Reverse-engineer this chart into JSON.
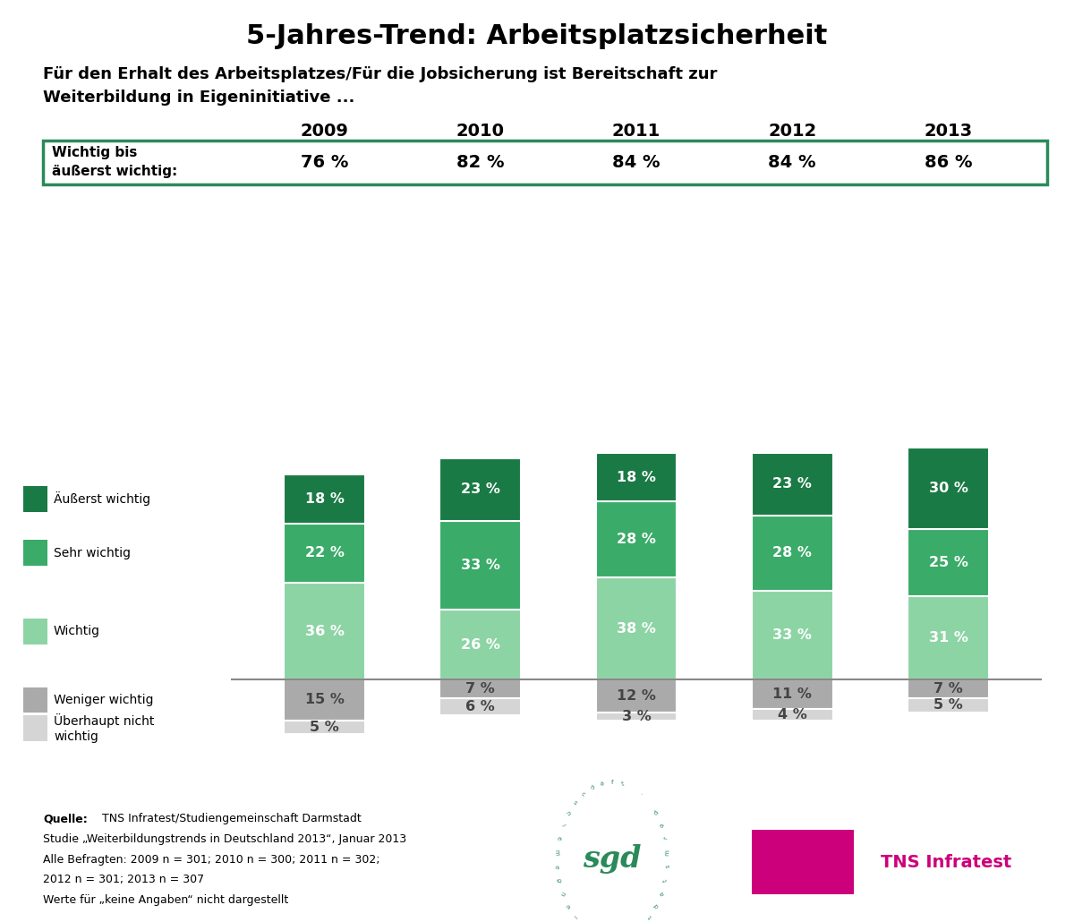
{
  "title": "5-Jahres-Trend: Arbeitsplatzsicherheit",
  "subtitle_line1": "Für den Erhalt des Arbeitsplatzes/Für die Jobsicherung ist Bereitschaft zur",
  "subtitle_line2": "Weiterbildung in Eigeninitiative ...",
  "years": [
    "2009",
    "2010",
    "2011",
    "2012",
    "2013"
  ],
  "summary_label_line1": "Wichtig bis",
  "summary_label_line2": "äußerst wichtig:",
  "summary_values": [
    "76 %",
    "82 %",
    "84 %",
    "84 %",
    "86 %"
  ],
  "data": {
    "aeu_wichtig": [
      18,
      23,
      18,
      23,
      30
    ],
    "sehr_wichtig": [
      22,
      33,
      28,
      28,
      25
    ],
    "wichtig": [
      36,
      26,
      38,
      33,
      31
    ],
    "weniger": [
      15,
      7,
      12,
      11,
      7
    ],
    "nicht": [
      5,
      6,
      3,
      4,
      5
    ]
  },
  "colors": {
    "aeu_wichtig": "#1a7a45",
    "sehr_wichtig": "#3aab68",
    "wichtig": "#8dd4a5",
    "weniger": "#aaaaaa",
    "nicht": "#d5d5d5"
  },
  "bar_width": 0.52,
  "background_color": "#ffffff",
  "box_border_color": "#2a8a5a",
  "divider_line_color": "#888888",
  "tns_color": "#cc007a",
  "source_bold": "Quelle:",
  "source_rest": " TNS Infratest/Studiengemeinschaft Darmstadt",
  "source_line2": "Studie „Weiterbildungstrends in Deutschland 2013“, Januar 2013",
  "source_line3": "Alle Befragten: 2009 n = 301; 2010 n = 300; 2011 n = 302;",
  "source_line4": "2012 n = 301; 2013 n = 307",
  "source_line5": "Werte für „keine Angaben“ nicht dargestellt"
}
